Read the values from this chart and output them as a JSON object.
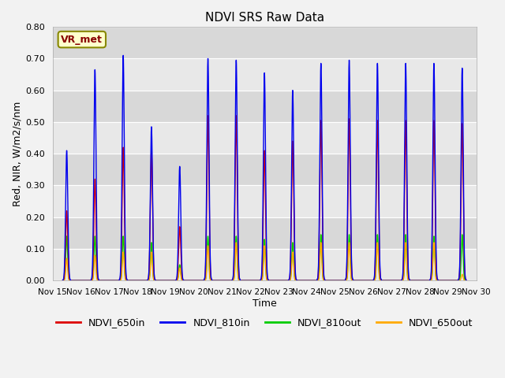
{
  "title": "NDVI SRS Raw Data",
  "xlabel": "Time",
  "ylabel": "Red, NIR, W/m2/s/nm",
  "ylim": [
    0.0,
    0.8
  ],
  "bg_color": "#e8e8e8",
  "legend_label": "VR_met",
  "series_colors": {
    "NDVI_650in": "#dd0000",
    "NDVI_810in": "#0000ee",
    "NDVI_810out": "#00cc00",
    "NDVI_650out": "#ffaa00"
  },
  "day_peaks": {
    "15": {
      "b": 0.41,
      "r": 0.22,
      "go": 0.14,
      "o": 0.07
    },
    "16": {
      "b": 0.665,
      "r": 0.32,
      "go": 0.14,
      "o": 0.08
    },
    "17": {
      "b": 0.71,
      "r": 0.42,
      "go": 0.14,
      "o": 0.09
    },
    "18": {
      "b": 0.485,
      "r": 0.41,
      "go": 0.12,
      "o": 0.09
    },
    "19": {
      "b": 0.36,
      "r": 0.17,
      "go": 0.05,
      "o": 0.04
    },
    "20": {
      "b": 0.7,
      "r": 0.52,
      "go": 0.14,
      "o": 0.11
    },
    "21": {
      "b": 0.695,
      "r": 0.52,
      "go": 0.14,
      "o": 0.12
    },
    "22": {
      "b": 0.655,
      "r": 0.41,
      "go": 0.13,
      "o": 0.11
    },
    "23": {
      "b": 0.6,
      "r": 0.44,
      "go": 0.12,
      "o": 0.09
    },
    "24": {
      "b": 0.685,
      "r": 0.505,
      "go": 0.145,
      "o": 0.12
    },
    "25": {
      "b": 0.695,
      "r": 0.51,
      "go": 0.145,
      "o": 0.12
    },
    "26": {
      "b": 0.685,
      "r": 0.505,
      "go": 0.145,
      "o": 0.12
    },
    "27": {
      "b": 0.685,
      "r": 0.505,
      "go": 0.145,
      "o": 0.12
    },
    "28": {
      "b": 0.685,
      "r": 0.505,
      "go": 0.14,
      "o": 0.12
    },
    "29": {
      "b": 0.67,
      "r": 0.495,
      "go": 0.145,
      "o": 0.02
    }
  },
  "yticks": [
    0.0,
    0.1,
    0.2,
    0.3,
    0.4,
    0.5,
    0.6,
    0.7,
    0.8
  ],
  "xtick_labels": [
    "Nov 15",
    "Nov 16",
    "Nov 17",
    "Nov 18",
    "Nov 19",
    "Nov 20",
    "Nov 21",
    "Nov 22",
    "Nov 23",
    "Nov 24",
    "Nov 25",
    "Nov 26",
    "Nov 27",
    "Nov 28",
    "Nov 29",
    "Nov 30"
  ],
  "figsize": [
    6.4,
    4.8
  ],
  "dpi": 100
}
